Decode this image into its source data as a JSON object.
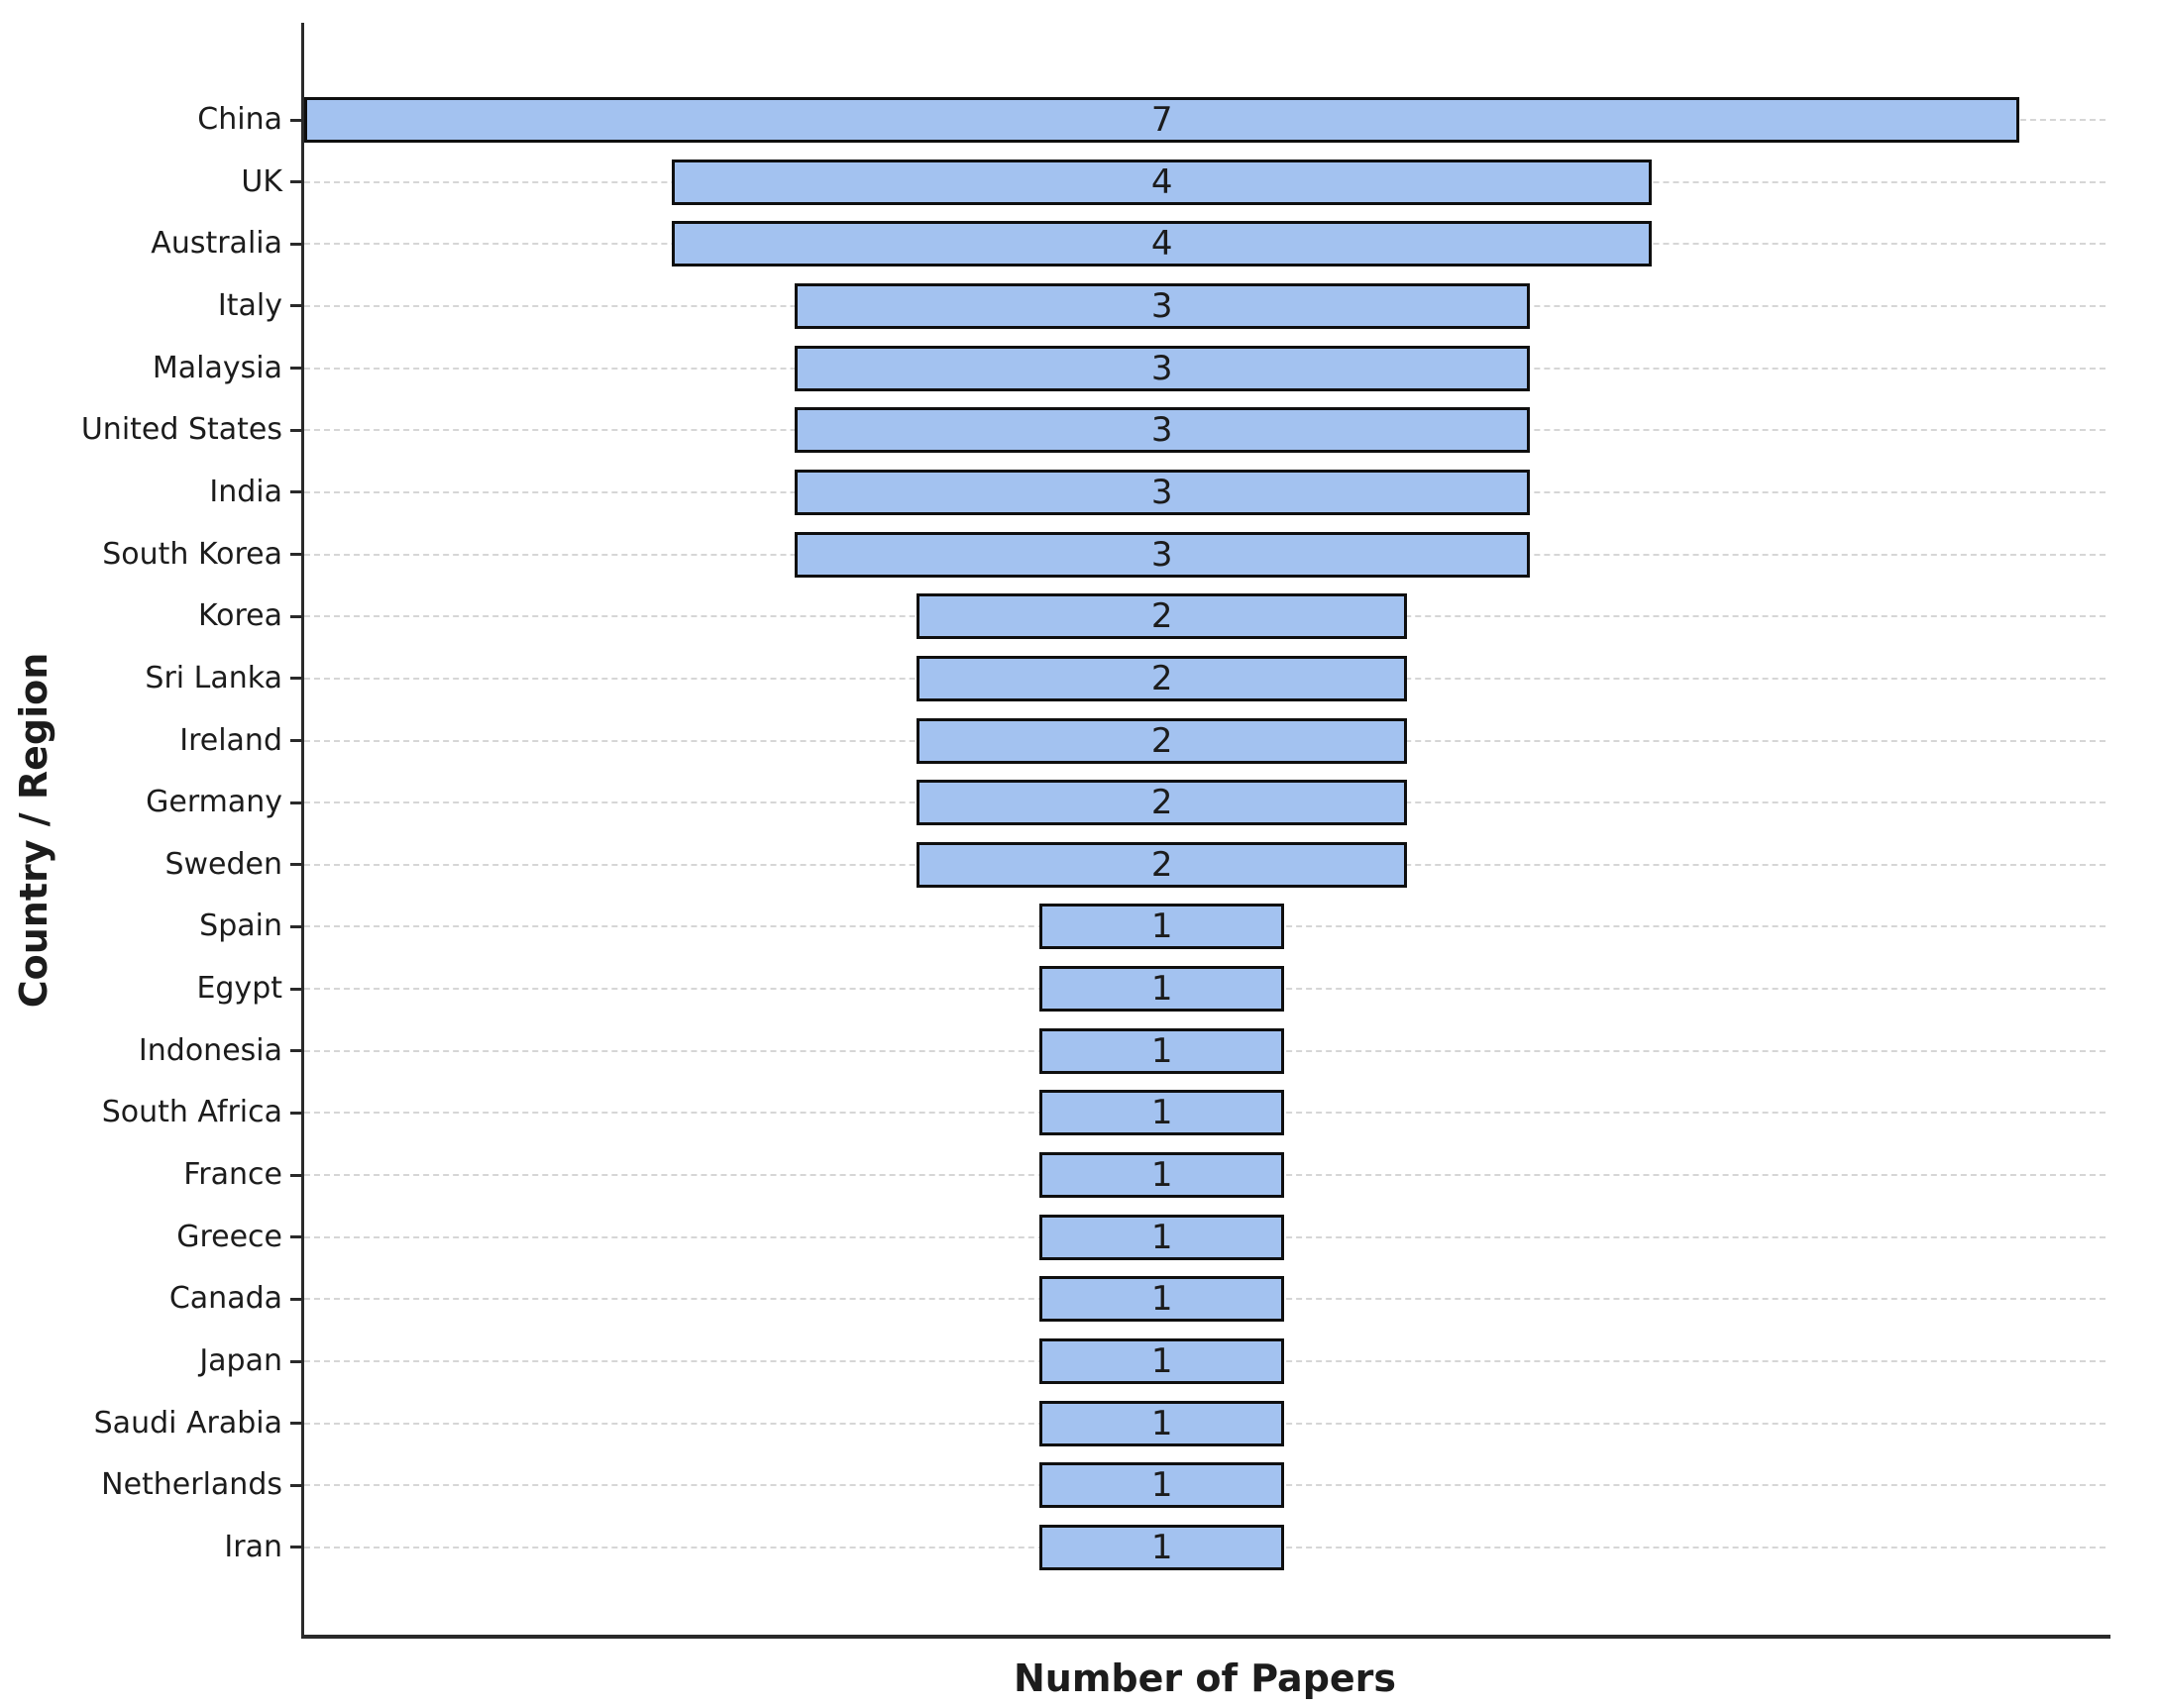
{
  "chart_data": {
    "type": "bar",
    "variant": "horizontal-centered-funnel",
    "title": "",
    "xlabel": "Number of Papers",
    "ylabel": "Country / Region",
    "categories": [
      "China",
      "UK",
      "Australia",
      "Italy",
      "Malaysia",
      "United States",
      "India",
      "South Korea",
      "Korea",
      "Sri Lanka",
      "Ireland",
      "Germany",
      "Sweden",
      "Spain",
      "Egypt",
      "Indonesia",
      "South Africa",
      "France",
      "Greece",
      "Canada",
      "Japan",
      "Saudi Arabia",
      "Netherlands",
      "Iran"
    ],
    "values": [
      7,
      4,
      4,
      3,
      3,
      3,
      3,
      3,
      2,
      2,
      2,
      2,
      2,
      1,
      1,
      1,
      1,
      1,
      1,
      1,
      1,
      1,
      1,
      1
    ],
    "value_labels_shown": true,
    "xlim": [
      0,
      7.35
    ],
    "x_tick_labels": [],
    "grid": "horizontal-dashed",
    "legend": "none",
    "bar_color": "#a3c2f0",
    "bar_edge_color": "#0f0f0f",
    "grid_color": "#d6d6d6",
    "axis_color": "#2a2a2a",
    "text_color": "#1c1c1c"
  }
}
